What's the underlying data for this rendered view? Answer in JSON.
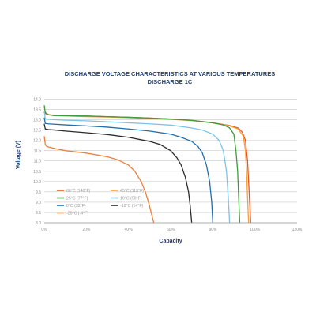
{
  "chart_data": {
    "type": "line",
    "title": "DISCHARGE VOLTAGE CHARACTERISTICS AT VARIOUS TEMPERATURES",
    "subtitle": "DISCHARGE 1C",
    "xlabel": "Capacity",
    "ylabel": "Voltage (V)",
    "xlim": [
      0,
      120
    ],
    "ylim": [
      8,
      14.4
    ],
    "x_ticks": [
      0,
      20,
      40,
      60,
      80,
      100,
      120
    ],
    "x_tick_labels": [
      "0%",
      "20%",
      "40%",
      "60%",
      "80%",
      "100%",
      "120%"
    ],
    "y_ticks": [
      8,
      8.5,
      9,
      9.5,
      10,
      10.5,
      11,
      11.5,
      12,
      12.5,
      13,
      13.5,
      14
    ],
    "y_tick_labels": [
      "8.0",
      "8.5",
      "9.0",
      "9.5",
      "10.0",
      "10.5",
      "11.0",
      "11.5",
      "12.0",
      "12.5",
      "13.0",
      "13.5",
      "14.0"
    ],
    "grid": "horizontal",
    "legend_position": "bottom-left",
    "series": [
      {
        "name": "60°C (140°F)",
        "color": "#e8552b",
        "x": [
          0,
          0.5,
          2,
          5,
          10,
          20,
          30,
          40,
          50,
          60,
          70,
          80,
          88,
          92,
          94,
          95.5,
          96.5,
          97,
          97.6,
          98
        ],
        "y": [
          13.4,
          13.3,
          13.25,
          13.2,
          13.2,
          13.18,
          13.15,
          13.12,
          13.08,
          13.04,
          12.97,
          12.85,
          12.72,
          12.6,
          12.4,
          12.0,
          11.0,
          10.0,
          8.8,
          8.0
        ]
      },
      {
        "name": "45°C (113°F)",
        "color": "#f2a33a",
        "x": [
          0,
          0.5,
          2,
          5,
          10,
          20,
          30,
          40,
          50,
          60,
          70,
          80,
          88,
          92,
          94.5,
          95.5,
          96,
          96.6,
          97
        ],
        "y": [
          13.6,
          13.35,
          13.25,
          13.2,
          13.18,
          13.15,
          13.13,
          13.1,
          13.06,
          13.02,
          12.96,
          12.85,
          12.7,
          12.55,
          12.2,
          11.5,
          10.5,
          9.0,
          8.0
        ]
      },
      {
        "name": "25°C (77°F)",
        "color": "#3f9b3c",
        "x": [
          0,
          0.5,
          2,
          5,
          10,
          20,
          30,
          40,
          50,
          60,
          70,
          80,
          85,
          88,
          90,
          91,
          91.8,
          92.3,
          92.8
        ],
        "y": [
          13.7,
          13.35,
          13.24,
          13.2,
          13.2,
          13.18,
          13.15,
          13.12,
          13.08,
          13.03,
          12.97,
          12.85,
          12.75,
          12.6,
          12.3,
          11.5,
          10.5,
          9.2,
          8.0
        ]
      },
      {
        "name": "10°C (50°F)",
        "color": "#7dc3e8",
        "x": [
          0,
          0.5,
          2,
          5,
          10,
          20,
          30,
          40,
          50,
          60,
          70,
          75,
          80,
          83,
          85,
          86.5,
          87.3,
          88
        ],
        "y": [
          13.4,
          13.05,
          13.03,
          13.0,
          12.98,
          12.95,
          12.9,
          12.85,
          12.8,
          12.74,
          12.6,
          12.5,
          12.3,
          12.0,
          11.5,
          10.5,
          9.3,
          8.0
        ]
      },
      {
        "name": "0°C (32°F)",
        "color": "#1f6fad",
        "x": [
          0,
          0.5,
          2,
          5,
          10,
          20,
          30,
          40,
          50,
          60,
          65,
          70,
          73,
          75,
          77,
          78.5,
          79.5,
          80
        ],
        "y": [
          13.1,
          12.82,
          12.8,
          12.78,
          12.75,
          12.7,
          12.64,
          12.55,
          12.45,
          12.3,
          12.15,
          11.95,
          11.7,
          11.4,
          10.8,
          10.0,
          9.0,
          8.0
        ]
      },
      {
        "name": "-10°C (14°F)",
        "color": "#2b2b2b",
        "x": [
          0,
          0.5,
          2,
          5,
          10,
          20,
          30,
          40,
          50,
          55,
          60,
          63,
          65,
          67,
          68.5,
          69.3,
          70
        ],
        "y": [
          12.8,
          12.55,
          12.52,
          12.5,
          12.45,
          12.37,
          12.28,
          12.15,
          11.95,
          11.8,
          11.5,
          11.15,
          10.8,
          10.2,
          9.5,
          8.8,
          8.0
        ]
      },
      {
        "name": "-20°C (-4°F)",
        "color": "#f07f3c",
        "x": [
          0,
          0.5,
          1,
          2,
          5,
          10,
          20,
          30,
          35,
          40,
          43,
          46,
          48,
          49.5,
          50.5,
          51.5,
          52
        ],
        "y": [
          12.2,
          11.8,
          11.72,
          11.68,
          11.6,
          11.5,
          11.38,
          11.2,
          11.05,
          10.8,
          10.5,
          10.0,
          9.5,
          9.0,
          8.6,
          8.2,
          8.0
        ]
      }
    ]
  }
}
